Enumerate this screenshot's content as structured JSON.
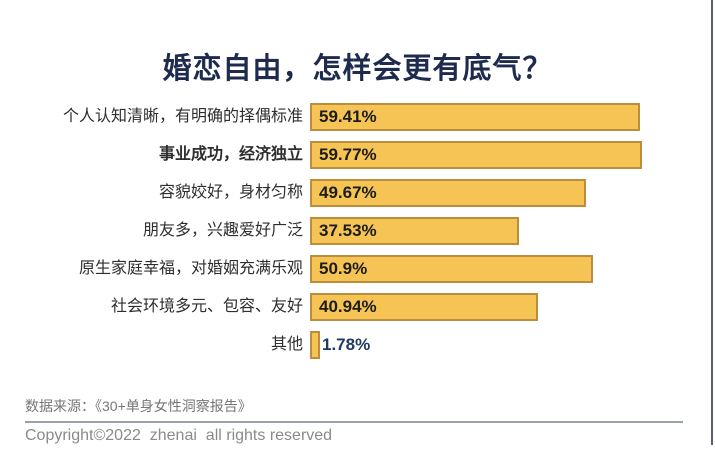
{
  "title": "婚恋自由，怎样会更有底气？",
  "chart_data": {
    "type": "bar",
    "orientation": "horizontal",
    "title": "婚恋自由，怎样会更有底气？",
    "categories": [
      "个人认知清晰，有明确的择偶标准",
      "事业成功，经济独立",
      "容貌姣好，身材匀称",
      "朋友多，兴趣爱好广泛",
      "原生家庭幸福，对婚姻充满乐观",
      "社会环境多元、包容、友好",
      "其他"
    ],
    "values": [
      59.41,
      59.77,
      49.67,
      37.53,
      50.9,
      40.94,
      1.78
    ],
    "value_labels": [
      "59.41%",
      "59.77%",
      "49.67%",
      "37.53%",
      "50.9%",
      "40.94%",
      "1.78%"
    ],
    "emphasized_category_index": 1,
    "xlim": [
      0,
      61.5
    ],
    "grid": false,
    "legend": false,
    "bar_color": "#f6c454",
    "bar_border_color": "#bb8e3e",
    "value_color_inside": "#1c1c1a",
    "value_color_outside": "#1e3a64"
  },
  "footer": {
    "source": "数据来源：《30+单身女性洞察报告》",
    "copyright": "Copyright©2022  zhenai  all rights reserved"
  },
  "colors": {
    "title": "#1e2b4e",
    "label": "#2e2e2e",
    "source": "#767676",
    "copyright": "#8a8a8a",
    "divider": "#99a1ac"
  }
}
